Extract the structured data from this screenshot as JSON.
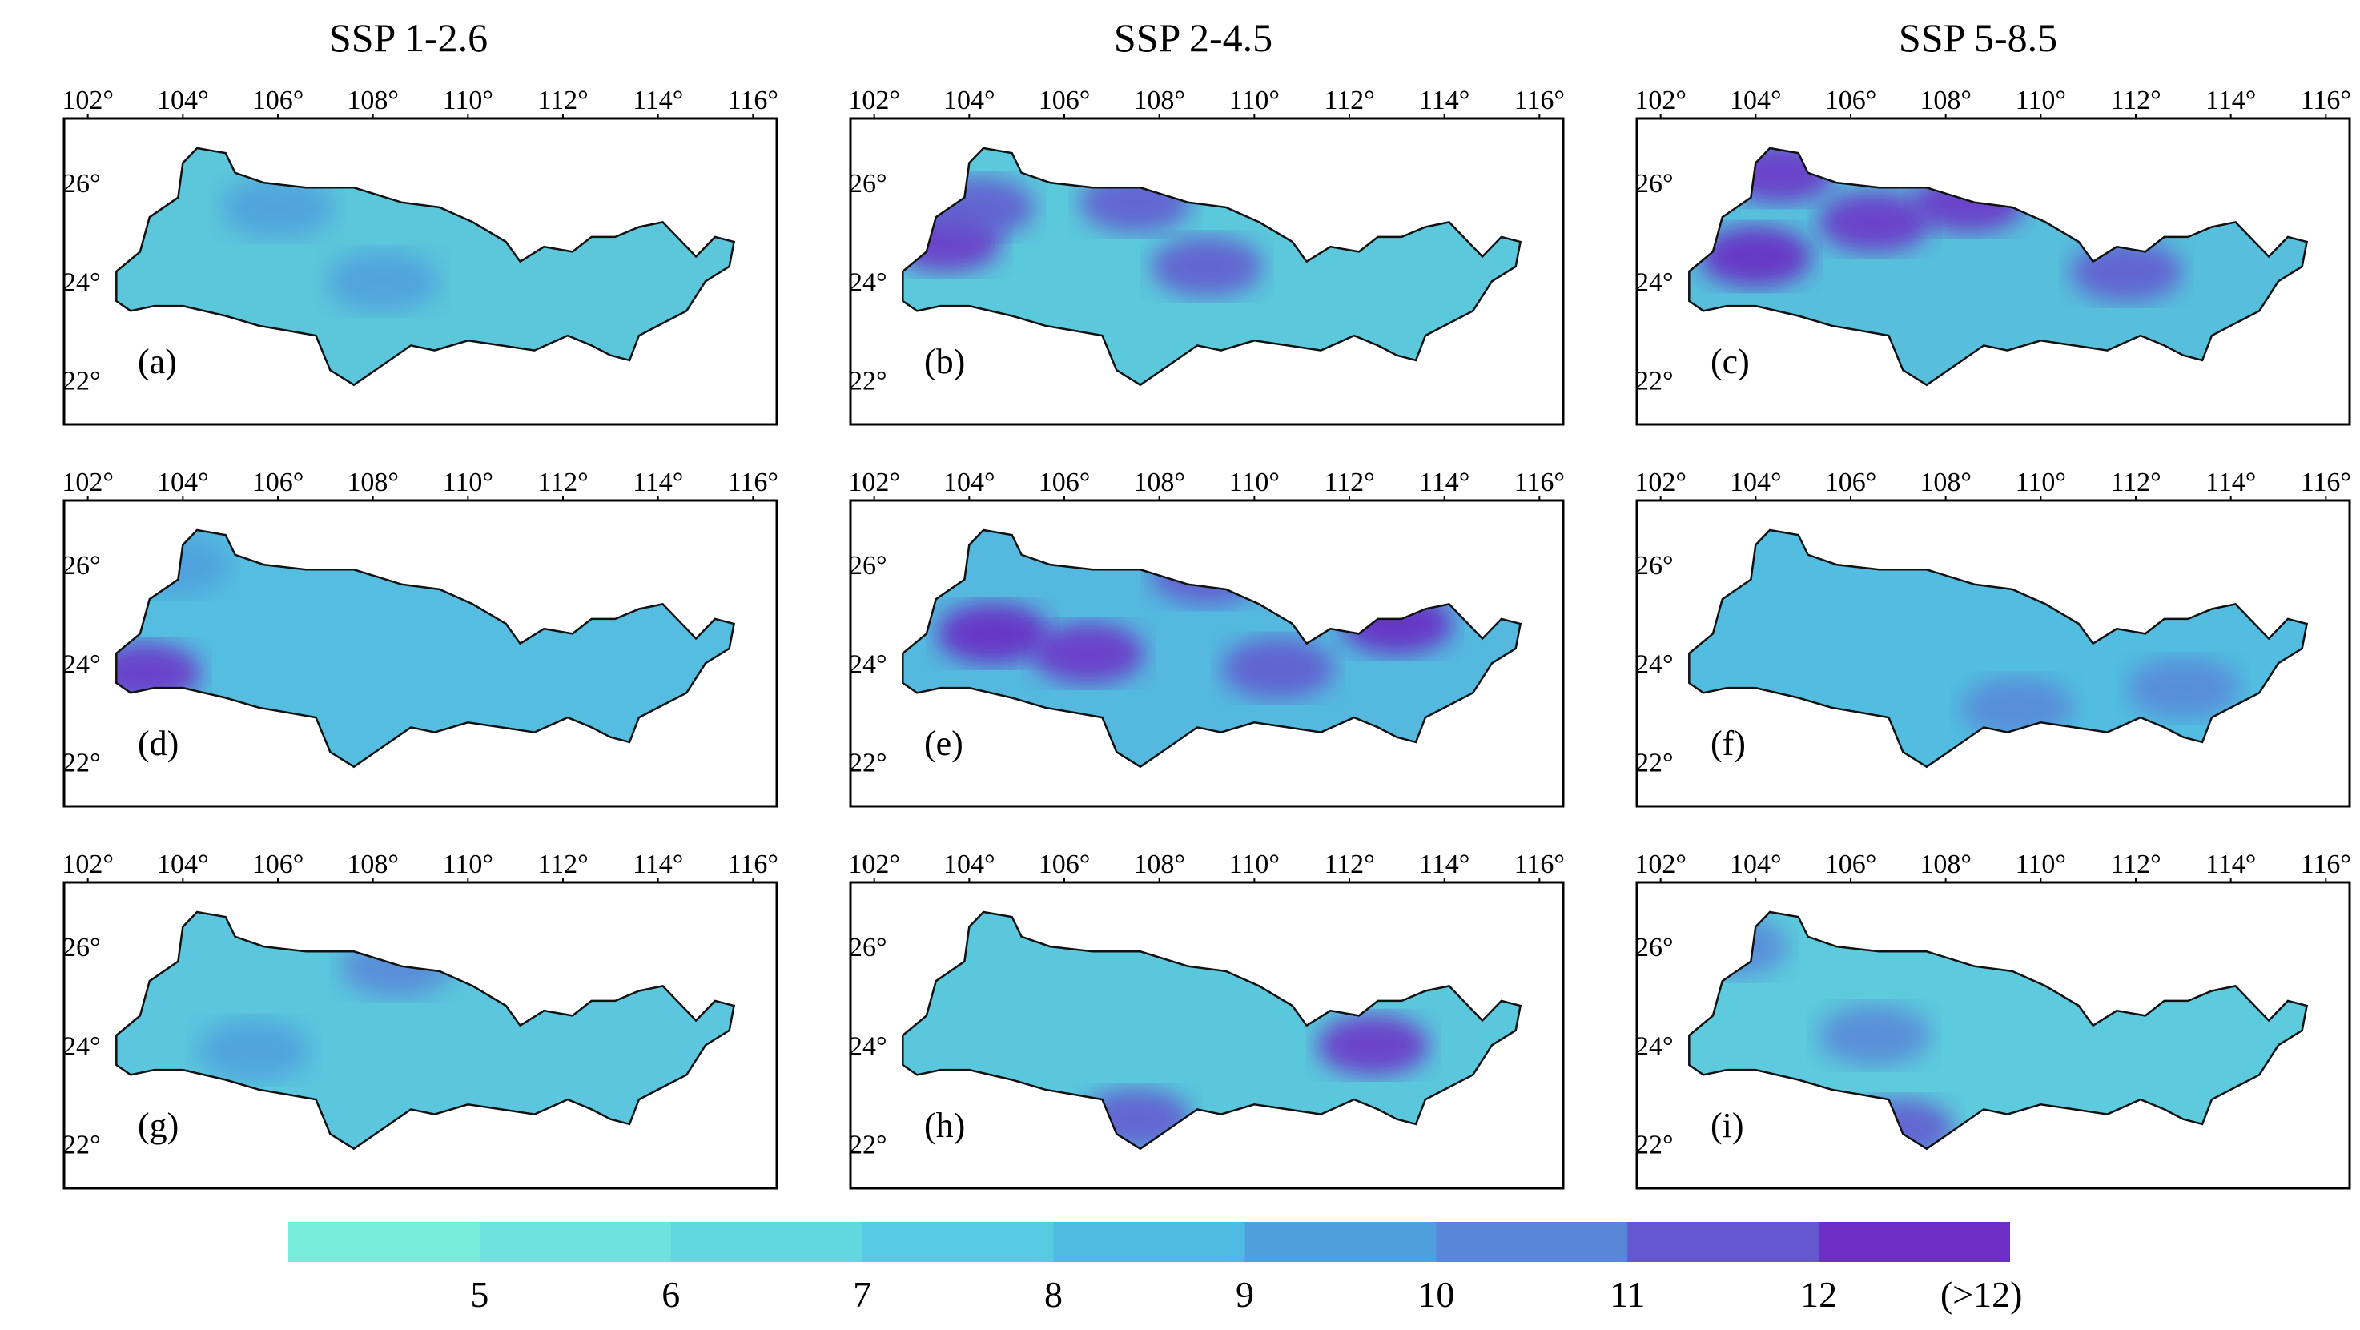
{
  "columns": [
    "SSP 1-2.6",
    "SSP 2-4.5",
    "SSP 5-8.5"
  ],
  "longitude_ticks": [
    "102°",
    "104°",
    "106°",
    "108°",
    "110°",
    "112°",
    "114°",
    "116°"
  ],
  "latitude_ticks": [
    "26°",
    "24°",
    "22°"
  ],
  "panels": [
    {
      "label": "(a)",
      "scenario": "SSP 1-2.6",
      "row": 1,
      "base_color": "#5cc6db",
      "hotspots": [
        {
          "lon": 108.2,
          "lat": 24.0,
          "level": 9
        },
        {
          "lon": 106.0,
          "lat": 25.5,
          "level": 9
        }
      ]
    },
    {
      "label": "(b)",
      "scenario": "SSP 2-4.5",
      "row": 1,
      "base_color": "#5bc8dc",
      "hotspots": [
        {
          "lon": 103.5,
          "lat": 24.8,
          "level": 12
        },
        {
          "lon": 104.2,
          "lat": 25.5,
          "level": 11
        },
        {
          "lon": 107.5,
          "lat": 25.6,
          "level": 11
        },
        {
          "lon": 109.0,
          "lat": 24.3,
          "level": 11
        }
      ]
    },
    {
      "label": "(c)",
      "scenario": "SSP 5-8.5",
      "row": 1,
      "base_color": "#57bfdc",
      "hotspots": [
        {
          "lon": 104.0,
          "lat": 24.5,
          "level": 13
        },
        {
          "lon": 106.5,
          "lat": 25.2,
          "level": 12
        },
        {
          "lon": 108.5,
          "lat": 25.6,
          "level": 12
        },
        {
          "lon": 111.8,
          "lat": 24.2,
          "level": 11
        },
        {
          "lon": 104.5,
          "lat": 26.2,
          "level": 12
        }
      ]
    },
    {
      "label": "(d)",
      "scenario": "SSP 1-2.6",
      "row": 2,
      "base_color": "#55bde0",
      "hotspots": [
        {
          "lon": 103.2,
          "lat": 23.8,
          "level": 12
        },
        {
          "lon": 103.8,
          "lat": 26.0,
          "level": 9
        }
      ]
    },
    {
      "label": "(e)",
      "scenario": "SSP 2-4.5",
      "row": 2,
      "base_color": "#55b8df",
      "hotspots": [
        {
          "lon": 104.5,
          "lat": 24.6,
          "level": 13
        },
        {
          "lon": 106.5,
          "lat": 24.2,
          "level": 12
        },
        {
          "lon": 113.0,
          "lat": 24.8,
          "level": 13
        },
        {
          "lon": 110.5,
          "lat": 23.9,
          "level": 11
        },
        {
          "lon": 109.0,
          "lat": 25.8,
          "level": 11
        }
      ]
    },
    {
      "label": "(f)",
      "scenario": "SSP 5-8.5",
      "row": 2,
      "base_color": "#52bde0",
      "hotspots": [
        {
          "lon": 109.5,
          "lat": 23.1,
          "level": 10
        },
        {
          "lon": 113.0,
          "lat": 23.5,
          "level": 10
        }
      ]
    },
    {
      "label": "(g)",
      "scenario": "SSP 1-2.6",
      "row": 3,
      "base_color": "#5bc6de",
      "hotspots": [
        {
          "lon": 108.5,
          "lat": 25.6,
          "level": 10
        },
        {
          "lon": 105.5,
          "lat": 23.9,
          "level": 9
        }
      ]
    },
    {
      "label": "(h)",
      "scenario": "SSP 2-4.5",
      "row": 3,
      "base_color": "#5ac7dd",
      "hotspots": [
        {
          "lon": 112.5,
          "lat": 24.0,
          "level": 12
        },
        {
          "lon": 107.5,
          "lat": 22.5,
          "level": 11
        }
      ]
    },
    {
      "label": "(i)",
      "scenario": "SSP 5-8.5",
      "row": 3,
      "base_color": "#5dcadd",
      "hotspots": [
        {
          "lon": 106.5,
          "lat": 24.2,
          "level": 10
        },
        {
          "lon": 107.0,
          "lat": 22.3,
          "level": 11
        },
        {
          "lon": 103.5,
          "lat": 26.0,
          "level": 10
        }
      ]
    }
  ],
  "legend": {
    "labels": [
      "5",
      "6",
      "7",
      "8",
      "9",
      "10",
      "11",
      "12",
      "(>12)"
    ],
    "colors": [
      "#78eddc",
      "#6de3df",
      "#61d8e0",
      "#57cbe2",
      "#4fbbe2",
      "#4f9fdd",
      "#5a86d8",
      "#6457cf",
      "#6e2fc6"
    ]
  }
}
